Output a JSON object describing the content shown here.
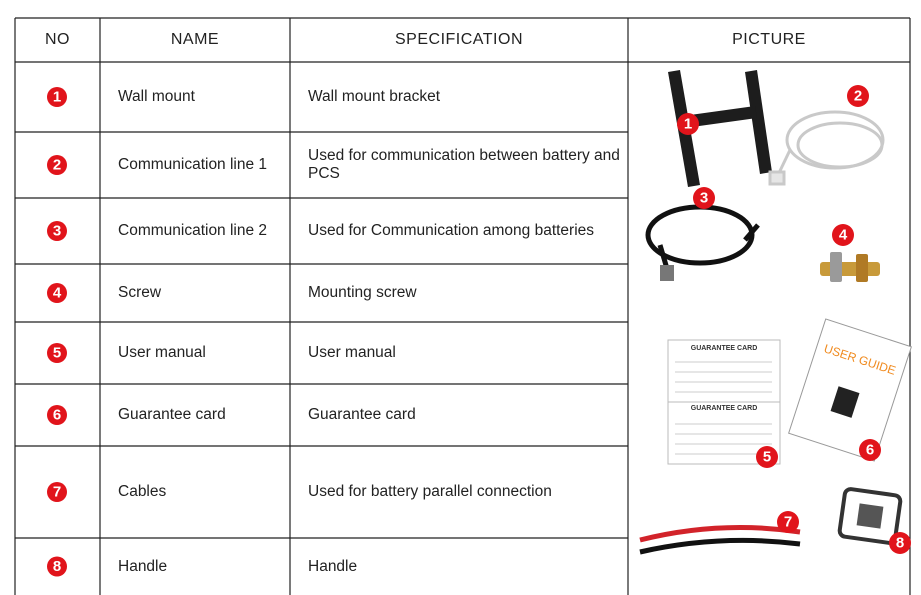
{
  "table": {
    "headers": [
      "NO",
      "NAME",
      "SPECIFICATION",
      "PICTURE"
    ],
    "rows": [
      [
        "1",
        "Wall mount",
        "Wall mount bracket"
      ],
      [
        "2",
        "Communication line 1",
        "Used for communication between battery and PCS"
      ],
      [
        "3",
        "Communication line 2",
        "Used for Communication among batteries"
      ],
      [
        "4",
        "Screw",
        "Mounting screw"
      ],
      [
        "5",
        "User manual",
        "User manual"
      ],
      [
        "6",
        "Guarantee card",
        "Guarantee card"
      ],
      [
        "7",
        "Cables",
        "Used for battery parallel connection"
      ],
      [
        "8",
        "Handle",
        "Handle"
      ]
    ]
  },
  "pictures": {
    "badges": [
      "1",
      "2",
      "3",
      "4",
      "5",
      "6",
      "7",
      "8"
    ],
    "guarantee_card_title": "GUARANTEE CARD",
    "user_guide_title": "USER GUIDE"
  }
}
